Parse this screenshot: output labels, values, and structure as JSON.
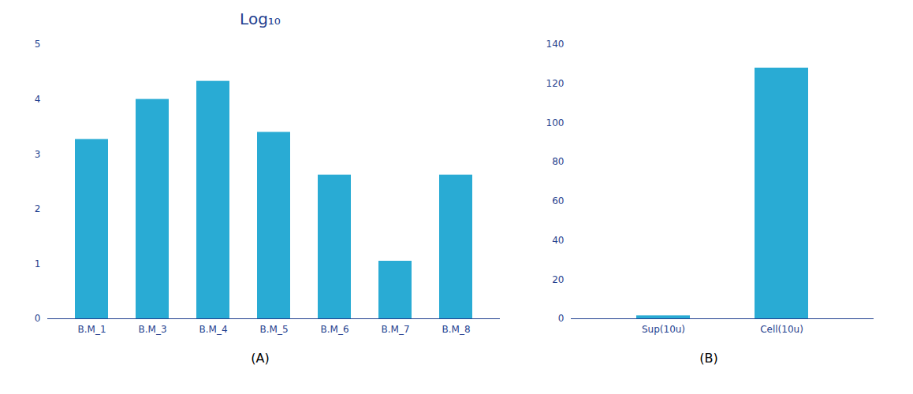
{
  "chart_data": [
    {
      "type": "bar",
      "title": "Log₁₀",
      "categories": [
        "B.M_1",
        "B.M_3",
        "B.M_4",
        "B.M_5",
        "B.M_6",
        "B.M_7",
        "B.M_8"
      ],
      "values": [
        3.27,
        4.0,
        4.33,
        3.4,
        2.62,
        1.05,
        2.62
      ],
      "color": "#29ABD4",
      "ylim": [
        0,
        5
      ],
      "yticks": [
        0,
        1,
        2,
        3,
        4,
        5
      ],
      "grid": false,
      "annotations": [
        "(A)"
      ]
    },
    {
      "type": "bar",
      "categories": [
        "Sup(10u)",
        "Cell(10u)"
      ],
      "values": [
        1.5,
        128
      ],
      "color": "#29ABD4",
      "ylim": [
        0,
        140
      ],
      "yticks": [
        0,
        20,
        40,
        60,
        80,
        100,
        120,
        140
      ],
      "grid": false,
      "annotations": [
        "(B)"
      ]
    }
  ]
}
